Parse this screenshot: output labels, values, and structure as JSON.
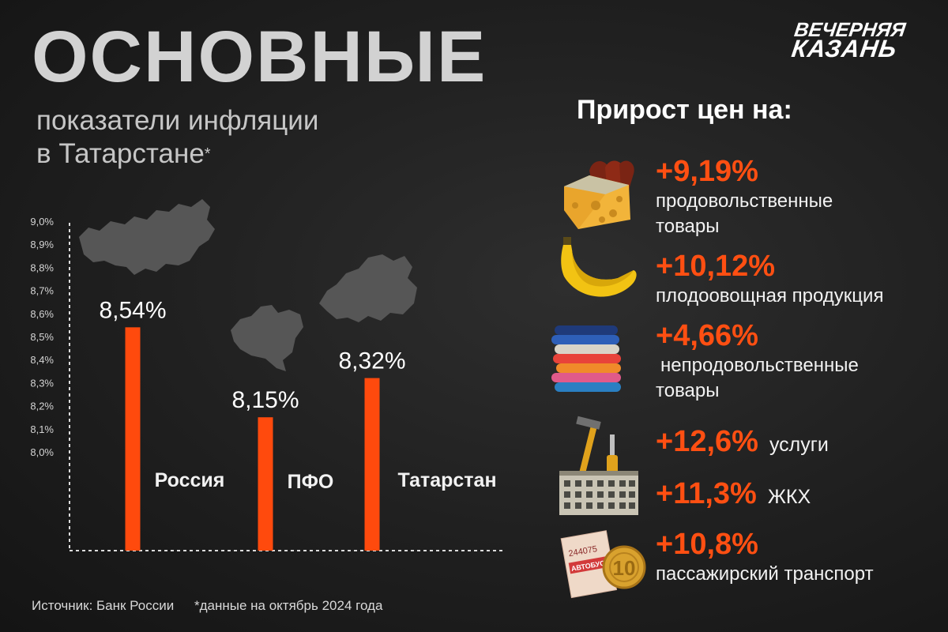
{
  "header": {
    "title": "ОСНОВНЫЕ",
    "subtitle_line1": "показатели инфляции",
    "subtitle_line2": "в Татарстане",
    "subtitle_mark": "*"
  },
  "logo": {
    "line1": "ВЕЧЕРНЯЯ",
    "line2": "КАЗАНЬ"
  },
  "colors": {
    "accent": "#ff4a0d",
    "map": "#5a5a5a",
    "axis": "#dcdcdc"
  },
  "chart_data": {
    "type": "bar",
    "categories": [
      "Россия",
      "ПФО",
      "Татарстан"
    ],
    "values": [
      8.54,
      8.15,
      8.32
    ],
    "value_labels": [
      "8,54%",
      "8,15%",
      "8,32%"
    ],
    "yticks": [
      "8,0%",
      "8,1%",
      "8,2%",
      "8,3%",
      "8,4%",
      "8,5%",
      "8,6%",
      "8,7%",
      "8,8%",
      "8,9%",
      "9,0%"
    ],
    "ylim": [
      8.0,
      9.0
    ],
    "grid": false,
    "title": "",
    "xlabel": "",
    "ylabel": ""
  },
  "right": {
    "heading": "Прирост цен на:",
    "items": [
      {
        "pct": "+9,19%",
        "desc_line1": "продовольственные",
        "desc_line2": "товары",
        "icon": "cheese-sausage-icon"
      },
      {
        "pct": "+10,12%",
        "desc_line1": "плодоовощная продукция",
        "icon": "banana-icon"
      },
      {
        "pct": "+4,66%",
        "desc_line1": "непродовольственные",
        "desc_line2": "товары",
        "icon": "clothes-stack-icon"
      },
      {
        "pct": "+12,6%",
        "desc_inline": "услуги",
        "icon": "tools-icon"
      },
      {
        "pct": "+11,3%",
        "desc_inline": "ЖКХ",
        "icon": "apartment-building-icon"
      },
      {
        "pct": "+10,8%",
        "desc_line1": "пассажирский транспорт",
        "icon": "bus-ticket-coin-icon"
      }
    ],
    "ticket_number": "244075",
    "ticket_word": "АВТОБУС",
    "coin_value": "10"
  },
  "footer": {
    "source": "Источник: Банк России",
    "note": "*данные на октябрь 2024 года"
  }
}
